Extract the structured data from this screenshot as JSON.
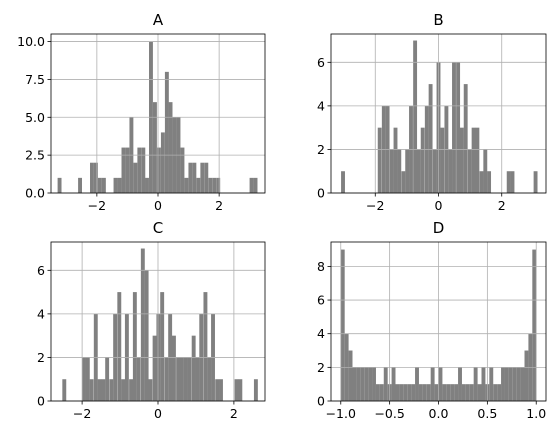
{
  "chart_data": [
    {
      "type": "bar",
      "title": "A",
      "bar_color": "#808080",
      "grid": true,
      "xlim": [
        -3.5,
        3.5
      ],
      "ylim": [
        0,
        10.5
      ],
      "x_ticks": [
        -2,
        0,
        2
      ],
      "x_tick_labels": [
        "−2",
        "0",
        "2"
      ],
      "y_ticks": [
        0,
        2.5,
        5,
        7.5,
        10
      ],
      "y_tick_labels": [
        "0.0",
        "2.5",
        "5.0",
        "7.5",
        "10.0"
      ],
      "bin_width": 0.128,
      "bins": [
        {
          "x": -3.22,
          "count": 1
        },
        {
          "x": -2.55,
          "count": 1
        },
        {
          "x": -2.16,
          "count": 2
        },
        {
          "x": -2.03,
          "count": 2
        },
        {
          "x": -1.9,
          "count": 1
        },
        {
          "x": -1.77,
          "count": 1
        },
        {
          "x": -1.39,
          "count": 1
        },
        {
          "x": -1.26,
          "count": 1
        },
        {
          "x": -1.13,
          "count": 3
        },
        {
          "x": -1.0,
          "count": 3
        },
        {
          "x": -0.87,
          "count": 5
        },
        {
          "x": -0.74,
          "count": 2
        },
        {
          "x": -0.61,
          "count": 3
        },
        {
          "x": -0.48,
          "count": 3
        },
        {
          "x": -0.36,
          "count": 1
        },
        {
          "x": -0.23,
          "count": 10
        },
        {
          "x": -0.1,
          "count": 6
        },
        {
          "x": 0.03,
          "count": 3
        },
        {
          "x": 0.16,
          "count": 4
        },
        {
          "x": 0.29,
          "count": 8
        },
        {
          "x": 0.41,
          "count": 6
        },
        {
          "x": 0.54,
          "count": 5
        },
        {
          "x": 0.67,
          "count": 5
        },
        {
          "x": 0.8,
          "count": 3
        },
        {
          "x": 0.93,
          "count": 1
        },
        {
          "x": 1.06,
          "count": 2
        },
        {
          "x": 1.19,
          "count": 2
        },
        {
          "x": 1.32,
          "count": 1
        },
        {
          "x": 1.45,
          "count": 2
        },
        {
          "x": 1.58,
          "count": 2
        },
        {
          "x": 1.71,
          "count": 1
        },
        {
          "x": 1.84,
          "count": 1
        },
        {
          "x": 1.97,
          "count": 1
        },
        {
          "x": 3.06,
          "count": 1
        },
        {
          "x": 3.19,
          "count": 1
        }
      ]
    },
    {
      "type": "bar",
      "title": "B",
      "bar_color": "#808080",
      "grid": true,
      "xlim": [
        -3.4,
        3.4
      ],
      "ylim": [
        0,
        7.3
      ],
      "x_ticks": [
        -2,
        0,
        2
      ],
      "x_tick_labels": [
        "−2",
        "0",
        "2"
      ],
      "y_ticks": [
        0,
        2,
        4,
        6
      ],
      "y_tick_labels": [
        "0",
        "2",
        "4",
        "6"
      ],
      "bin_width": 0.123,
      "bins": [
        {
          "x": -3.02,
          "count": 1
        },
        {
          "x": -1.86,
          "count": 3
        },
        {
          "x": -1.73,
          "count": 4
        },
        {
          "x": -1.61,
          "count": 4
        },
        {
          "x": -1.48,
          "count": 2
        },
        {
          "x": -1.36,
          "count": 3
        },
        {
          "x": -1.24,
          "count": 2
        },
        {
          "x": -1.11,
          "count": 1
        },
        {
          "x": -0.99,
          "count": 2
        },
        {
          "x": -0.87,
          "count": 4
        },
        {
          "x": -0.74,
          "count": 7
        },
        {
          "x": -0.62,
          "count": 2
        },
        {
          "x": -0.5,
          "count": 3
        },
        {
          "x": -0.37,
          "count": 4
        },
        {
          "x": -0.25,
          "count": 5
        },
        {
          "x": -0.12,
          "count": 2
        },
        {
          "x": 0.0,
          "count": 6
        },
        {
          "x": 0.12,
          "count": 3
        },
        {
          "x": 0.25,
          "count": 4
        },
        {
          "x": 0.37,
          "count": 2
        },
        {
          "x": 0.49,
          "count": 6
        },
        {
          "x": 0.62,
          "count": 6
        },
        {
          "x": 0.74,
          "count": 3
        },
        {
          "x": 0.86,
          "count": 5
        },
        {
          "x": 0.99,
          "count": 2
        },
        {
          "x": 1.11,
          "count": 3
        },
        {
          "x": 1.23,
          "count": 3
        },
        {
          "x": 1.36,
          "count": 1
        },
        {
          "x": 1.48,
          "count": 2
        },
        {
          "x": 1.6,
          "count": 1
        },
        {
          "x": 2.22,
          "count": 1
        },
        {
          "x": 2.34,
          "count": 1
        },
        {
          "x": 3.07,
          "count": 1
        }
      ]
    },
    {
      "type": "bar",
      "title": "C",
      "bar_color": "#808080",
      "grid": true,
      "xlim": [
        -2.82,
        2.82
      ],
      "ylim": [
        0,
        7.3
      ],
      "x_ticks": [
        -2,
        0,
        2
      ],
      "x_tick_labels": [
        "−2",
        "0",
        "2"
      ],
      "y_ticks": [
        0,
        2,
        4,
        6
      ],
      "y_tick_labels": [
        "0",
        "2",
        "4",
        "6"
      ],
      "bin_width": 0.103,
      "bins": [
        {
          "x": -2.47,
          "count": 1
        },
        {
          "x": -1.95,
          "count": 2
        },
        {
          "x": -1.85,
          "count": 2
        },
        {
          "x": -1.75,
          "count": 1
        },
        {
          "x": -1.64,
          "count": 4
        },
        {
          "x": -1.54,
          "count": 1
        },
        {
          "x": -1.44,
          "count": 1
        },
        {
          "x": -1.34,
          "count": 2
        },
        {
          "x": -1.23,
          "count": 1
        },
        {
          "x": -1.13,
          "count": 4
        },
        {
          "x": -1.02,
          "count": 5
        },
        {
          "x": -0.92,
          "count": 1
        },
        {
          "x": -0.82,
          "count": 4
        },
        {
          "x": -0.71,
          "count": 1
        },
        {
          "x": -0.61,
          "count": 5
        },
        {
          "x": -0.51,
          "count": 2
        },
        {
          "x": -0.4,
          "count": 7
        },
        {
          "x": -0.3,
          "count": 6
        },
        {
          "x": -0.2,
          "count": 1
        },
        {
          "x": -0.09,
          "count": 3
        },
        {
          "x": 0.01,
          "count": 4
        },
        {
          "x": 0.11,
          "count": 5
        },
        {
          "x": 0.22,
          "count": 2
        },
        {
          "x": 0.32,
          "count": 4
        },
        {
          "x": 0.42,
          "count": 3
        },
        {
          "x": 0.53,
          "count": 2
        },
        {
          "x": 0.63,
          "count": 2
        },
        {
          "x": 0.73,
          "count": 2
        },
        {
          "x": 0.83,
          "count": 2
        },
        {
          "x": 0.94,
          "count": 3
        },
        {
          "x": 1.04,
          "count": 2
        },
        {
          "x": 1.14,
          "count": 4
        },
        {
          "x": 1.25,
          "count": 5
        },
        {
          "x": 1.35,
          "count": 2
        },
        {
          "x": 1.45,
          "count": 4
        },
        {
          "x": 1.56,
          "count": 1
        },
        {
          "x": 1.66,
          "count": 1
        },
        {
          "x": 2.07,
          "count": 1
        },
        {
          "x": 2.17,
          "count": 1
        },
        {
          "x": 2.58,
          "count": 1
        }
      ]
    },
    {
      "type": "bar",
      "title": "D",
      "bar_color": "#808080",
      "grid": true,
      "xlim": [
        -1.1,
        1.1
      ],
      "ylim": [
        0,
        9.45
      ],
      "x_ticks": [
        -1,
        -0.5,
        0,
        0.5,
        1
      ],
      "x_tick_labels": [
        "−1.0",
        "−0.5",
        "0.0",
        "0.5",
        "1.0"
      ],
      "y_ticks": [
        0,
        2,
        4,
        6,
        8
      ],
      "y_tick_labels": [
        "0",
        "2",
        "4",
        "6",
        "8"
      ],
      "bin_width": 0.04,
      "bins": [
        {
          "x": -0.98,
          "count": 9
        },
        {
          "x": -0.94,
          "count": 4
        },
        {
          "x": -0.9,
          "count": 3
        },
        {
          "x": -0.86,
          "count": 2
        },
        {
          "x": -0.82,
          "count": 2
        },
        {
          "x": -0.78,
          "count": 2
        },
        {
          "x": -0.74,
          "count": 2
        },
        {
          "x": -0.7,
          "count": 2
        },
        {
          "x": -0.66,
          "count": 2
        },
        {
          "x": -0.62,
          "count": 1
        },
        {
          "x": -0.58,
          "count": 1
        },
        {
          "x": -0.54,
          "count": 2
        },
        {
          "x": -0.5,
          "count": 1
        },
        {
          "x": -0.46,
          "count": 2
        },
        {
          "x": -0.42,
          "count": 1
        },
        {
          "x": -0.38,
          "count": 1
        },
        {
          "x": -0.34,
          "count": 1
        },
        {
          "x": -0.3,
          "count": 1
        },
        {
          "x": -0.26,
          "count": 1
        },
        {
          "x": -0.22,
          "count": 2
        },
        {
          "x": -0.18,
          "count": 1
        },
        {
          "x": -0.14,
          "count": 1
        },
        {
          "x": -0.1,
          "count": 1
        },
        {
          "x": -0.06,
          "count": 2
        },
        {
          "x": -0.02,
          "count": 1
        },
        {
          "x": 0.02,
          "count": 2
        },
        {
          "x": 0.06,
          "count": 1
        },
        {
          "x": 0.1,
          "count": 1
        },
        {
          "x": 0.14,
          "count": 1
        },
        {
          "x": 0.18,
          "count": 1
        },
        {
          "x": 0.22,
          "count": 2
        },
        {
          "x": 0.26,
          "count": 1
        },
        {
          "x": 0.3,
          "count": 1
        },
        {
          "x": 0.34,
          "count": 1
        },
        {
          "x": 0.38,
          "count": 2
        },
        {
          "x": 0.42,
          "count": 1
        },
        {
          "x": 0.46,
          "count": 2
        },
        {
          "x": 0.5,
          "count": 1
        },
        {
          "x": 0.54,
          "count": 2
        },
        {
          "x": 0.58,
          "count": 1
        },
        {
          "x": 0.62,
          "count": 1
        },
        {
          "x": 0.66,
          "count": 2
        },
        {
          "x": 0.7,
          "count": 2
        },
        {
          "x": 0.74,
          "count": 2
        },
        {
          "x": 0.78,
          "count": 2
        },
        {
          "x": 0.82,
          "count": 2
        },
        {
          "x": 0.86,
          "count": 2
        },
        {
          "x": 0.9,
          "count": 3
        },
        {
          "x": 0.94,
          "count": 4
        },
        {
          "x": 0.98,
          "count": 9
        }
      ]
    }
  ]
}
